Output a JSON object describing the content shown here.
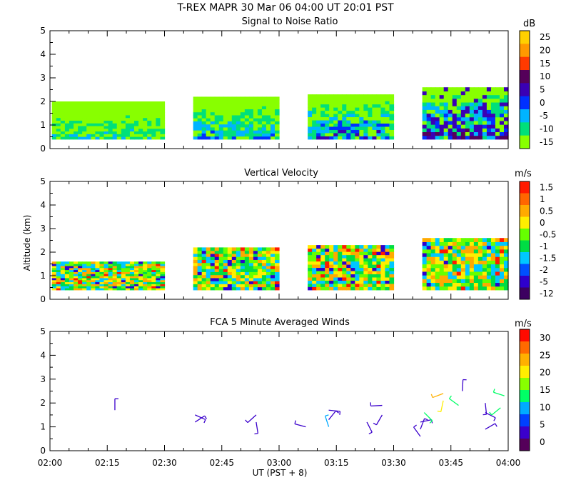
{
  "header": {
    "title": "T-REX   MAPR 30 Mar 06   04:00 UT   20:01   PST"
  },
  "chart_data": [
    {
      "type": "heatmap",
      "title": "Signal to Noise Ratio",
      "ylabel": "",
      "xlabel": "",
      "ylim": [
        0,
        5
      ],
      "yticks": [
        "0",
        "1",
        "2",
        "3",
        "4",
        "5"
      ],
      "colorbar": {
        "unit": "dB",
        "labels": [
          "25",
          "20",
          "15",
          "10",
          "5",
          "0",
          "-5",
          "-10",
          "-15"
        ],
        "colors": [
          "#ffd000",
          "#ff9900",
          "#ff3a00",
          "#55005a",
          "#3a00b4",
          "#0030ff",
          "#00b4ff",
          "#00e07a",
          "#88ff00"
        ]
      },
      "segments": [
        {
          "start": 0.5,
          "end": 30.0,
          "top_km": 2.0
        },
        {
          "start": 37.5,
          "end": 60.0,
          "top_km": 2.2
        },
        {
          "start": 67.5,
          "end": 90.0,
          "top_km": 2.3
        },
        {
          "start": 97.5,
          "end": 120.0,
          "top_km": 2.6
        }
      ]
    },
    {
      "type": "heatmap",
      "title": "Vertical Velocity",
      "ylabel": "Altitude (km)",
      "ylim": [
        0,
        5
      ],
      "yticks": [
        "0",
        "1",
        "2",
        "3",
        "4",
        "5"
      ],
      "colorbar": {
        "unit": "m/s",
        "labels": [
          "1.5",
          "1",
          "0.5",
          "0",
          "-0.5",
          "-1",
          "-1.5",
          "-2",
          "-5",
          "-12"
        ],
        "colors": [
          "#ff1a00",
          "#ff6600",
          "#ffaa00",
          "#ffee00",
          "#66ff00",
          "#00dd44",
          "#00c8ff",
          "#0050ff",
          "#2e00cc",
          "#3c0060"
        ]
      },
      "segments": [
        {
          "start": 0.5,
          "end": 30.0,
          "top_km": 1.6
        },
        {
          "start": 37.5,
          "end": 60.0,
          "top_km": 2.2
        },
        {
          "start": 67.5,
          "end": 90.0,
          "top_km": 2.3
        },
        {
          "start": 97.5,
          "end": 120.0,
          "top_km": 2.6
        }
      ]
    },
    {
      "type": "scatter",
      "title": "FCA 5 Minute Averaged Winds",
      "xlabel": "UT  (PST + 8)",
      "ylim": [
        0,
        5
      ],
      "yticks": [
        "0",
        "1",
        "2",
        "3",
        "4",
        "5"
      ],
      "xticks": [
        "02:00",
        "02:15",
        "02:30",
        "02:45",
        "03:00",
        "03:15",
        "03:30",
        "03:45",
        "04:00"
      ],
      "colorbar": {
        "unit": "m/s",
        "labels": [
          "30",
          "25",
          "20",
          "15",
          "10",
          "5",
          "0"
        ],
        "colors": [
          "#ff0a00",
          "#ff6a00",
          "#ffb000",
          "#ffee00",
          "#88ff00",
          "#00ff66",
          "#00aaff",
          "#0040ff",
          "#3a00cc",
          "#55005a"
        ]
      },
      "barbs": [
        {
          "t": 17,
          "alt": 1.7,
          "speed": 5
        },
        {
          "t": 38,
          "alt": 1.2,
          "speed": 5
        },
        {
          "t": 38,
          "alt": 1.5,
          "speed": 5
        },
        {
          "t": 54,
          "alt": 1.2,
          "speed": 5
        },
        {
          "t": 54,
          "alt": 1.5,
          "speed": 5
        },
        {
          "t": 67,
          "alt": 1.0,
          "speed": 5
        },
        {
          "t": 73,
          "alt": 1.0,
          "speed": 10
        },
        {
          "t": 73,
          "alt": 1.3,
          "speed": 5
        },
        {
          "t": 73,
          "alt": 1.7,
          "speed": 5
        },
        {
          "t": 83,
          "alt": 1.2,
          "speed": 5
        },
        {
          "t": 87,
          "alt": 1.5,
          "speed": 5
        },
        {
          "t": 87,
          "alt": 1.9,
          "speed": 5
        },
        {
          "t": 97,
          "alt": 0.6,
          "speed": 5
        },
        {
          "t": 97,
          "alt": 0.9,
          "speed": 5
        },
        {
          "t": 97,
          "alt": 1.2,
          "speed": 5
        },
        {
          "t": 98,
          "alt": 1.6,
          "speed": 15
        },
        {
          "t": 103,
          "alt": 2.1,
          "speed": 20
        },
        {
          "t": 103,
          "alt": 2.4,
          "speed": 25
        },
        {
          "t": 107,
          "alt": 1.9,
          "speed": 15
        },
        {
          "t": 108,
          "alt": 2.5,
          "speed": 5
        },
        {
          "t": 114,
          "alt": 0.9,
          "speed": 5
        },
        {
          "t": 114,
          "alt": 1.6,
          "speed": 5
        },
        {
          "t": 114,
          "alt": 2.0,
          "speed": 5
        },
        {
          "t": 118,
          "alt": 1.8,
          "speed": 15
        },
        {
          "t": 119,
          "alt": 2.3,
          "speed": 15
        }
      ]
    }
  ]
}
